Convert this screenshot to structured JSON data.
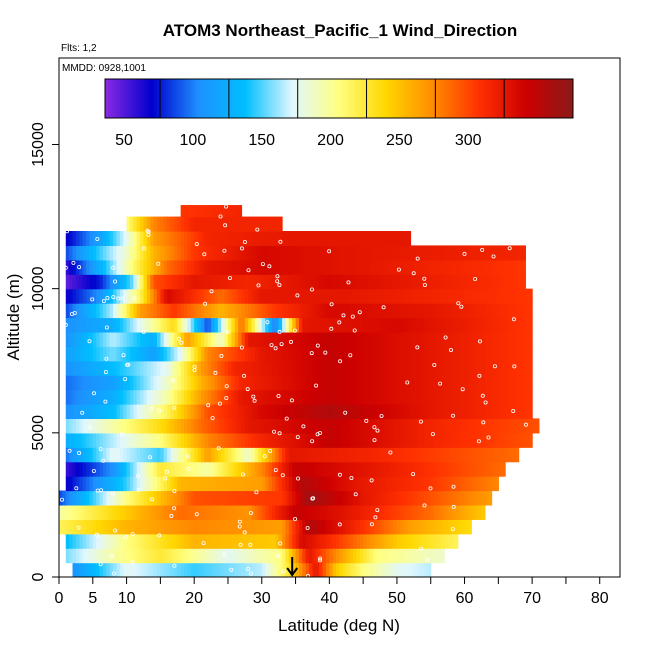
{
  "chart_data": {
    "type": "heatmap",
    "title": "ATOM3 Northeast_Pacific_1 Wind_Direction",
    "flights_label": "Flts: 1,2",
    "dates_label": "MMDD: 0928,1001",
    "xlabel": "Latitude (deg N)",
    "ylabel": "Altitude (m)",
    "xlim": [
      0,
      83
    ],
    "ylim": [
      0,
      18000
    ],
    "x_ticks": [
      0,
      5,
      10,
      20,
      30,
      40,
      50,
      60,
      70,
      80
    ],
    "y_ticks": [
      0,
      5000,
      10000,
      15000
    ],
    "colorbar": {
      "range": [
        10,
        350
      ],
      "ticks": [
        50,
        100,
        150,
        200,
        250,
        300
      ],
      "colors": [
        "#8a2be2",
        "#0000cd",
        "#1e90ff",
        "#00bfff",
        "#e0f7ff",
        "#ffff80",
        "#ffd700",
        "#ff8c00",
        "#ff3000",
        "#cc0000",
        "#8b1a1a"
      ]
    },
    "marker": {
      "x": 34.5,
      "label": "arrow"
    },
    "rows": [
      {
        "alt": [
          0,
          500
        ],
        "lat": [
          2,
          55
        ],
        "stops": [
          [
            2,
            80
          ],
          [
            10,
            150
          ],
          [
            20,
            120
          ],
          [
            30,
            140
          ],
          [
            34,
            200
          ],
          [
            38,
            300
          ],
          [
            41,
            220
          ],
          [
            45,
            180
          ],
          [
            50,
            150
          ],
          [
            55,
            140
          ]
        ]
      },
      {
        "alt": [
          500,
          1000
        ],
        "lat": [
          1,
          57
        ],
        "stops": [
          [
            1,
            130
          ],
          [
            8,
            170
          ],
          [
            15,
            200
          ],
          [
            25,
            150
          ],
          [
            33,
            180
          ],
          [
            37,
            300
          ],
          [
            40,
            260
          ],
          [
            47,
            180
          ],
          [
            57,
            160
          ]
        ]
      },
      {
        "alt": [
          1000,
          1500
        ],
        "lat": [
          1,
          59
        ],
        "stops": [
          [
            1,
            110
          ],
          [
            10,
            180
          ],
          [
            20,
            230
          ],
          [
            32,
            220
          ],
          [
            36,
            310
          ],
          [
            41,
            280
          ],
          [
            50,
            220
          ],
          [
            59,
            190
          ]
        ]
      },
      {
        "alt": [
          1500,
          2000
        ],
        "lat": [
          0,
          61
        ],
        "stops": [
          [
            0,
            190
          ],
          [
            10,
            230
          ],
          [
            20,
            250
          ],
          [
            33,
            240
          ],
          [
            37,
            330
          ],
          [
            42,
            300
          ],
          [
            52,
            240
          ],
          [
            61,
            210
          ]
        ]
      },
      {
        "alt": [
          2000,
          2500
        ],
        "lat": [
          0,
          63
        ],
        "stops": [
          [
            0,
            170
          ],
          [
            8,
            210
          ],
          [
            18,
            260
          ],
          [
            28,
            245
          ],
          [
            35,
            320
          ],
          [
            43,
            300
          ],
          [
            55,
            260
          ],
          [
            63,
            220
          ]
        ]
      },
      {
        "alt": [
          2500,
          3000
        ],
        "lat": [
          0,
          64
        ],
        "stops": [
          [
            0,
            60
          ],
          [
            10,
            180
          ],
          [
            20,
            270
          ],
          [
            33,
            280
          ],
          [
            37,
            340
          ],
          [
            45,
            300
          ],
          [
            55,
            270
          ],
          [
            64,
            240
          ]
        ]
      },
      {
        "alt": [
          3000,
          3500
        ],
        "lat": [
          1,
          65
        ],
        "stops": [
          [
            1,
            40
          ],
          [
            10,
            120
          ],
          [
            18,
            230
          ],
          [
            30,
            240
          ],
          [
            36,
            330
          ],
          [
            44,
            300
          ],
          [
            55,
            280
          ],
          [
            65,
            250
          ]
        ]
      },
      {
        "alt": [
          3500,
          4000
        ],
        "lat": [
          1,
          66
        ],
        "stops": [
          [
            1,
            30
          ],
          [
            8,
            80
          ],
          [
            15,
            200
          ],
          [
            22,
            170
          ],
          [
            30,
            250
          ],
          [
            35,
            320
          ],
          [
            46,
            300
          ],
          [
            66,
            260
          ]
        ]
      },
      {
        "alt": [
          4000,
          4500
        ],
        "lat": [
          1,
          68
        ],
        "stops": [
          [
            1,
            70
          ],
          [
            8,
            150
          ],
          [
            15,
            120
          ],
          [
            22,
            240
          ],
          [
            28,
            160
          ],
          [
            34,
            300
          ],
          [
            46,
            290
          ],
          [
            68,
            260
          ]
        ]
      },
      {
        "alt": [
          4500,
          5000
        ],
        "lat": [
          1,
          70
        ],
        "stops": [
          [
            1,
            100
          ],
          [
            8,
            140
          ],
          [
            15,
            180
          ],
          [
            22,
            250
          ],
          [
            30,
            290
          ],
          [
            40,
            320
          ],
          [
            55,
            290
          ],
          [
            70,
            270
          ]
        ]
      },
      {
        "alt": [
          5000,
          5500
        ],
        "lat": [
          1,
          71
        ],
        "stops": [
          [
            1,
            130
          ],
          [
            8,
            170
          ],
          [
            15,
            210
          ],
          [
            21,
            260
          ],
          [
            28,
            300
          ],
          [
            40,
            320
          ],
          [
            55,
            290
          ],
          [
            71,
            270
          ]
        ]
      },
      {
        "alt": [
          5500,
          6000
        ],
        "lat": [
          1,
          70
        ],
        "stops": [
          [
            1,
            80
          ],
          [
            8,
            110
          ],
          [
            16,
            190
          ],
          [
            22,
            270
          ],
          [
            30,
            310
          ],
          [
            40,
            330
          ],
          [
            55,
            300
          ],
          [
            70,
            280
          ]
        ]
      },
      {
        "alt": [
          6000,
          6500
        ],
        "lat": [
          1,
          70
        ],
        "stops": [
          [
            1,
            70
          ],
          [
            8,
            100
          ],
          [
            16,
            170
          ],
          [
            21,
            240
          ],
          [
            27,
            300
          ],
          [
            40,
            320
          ],
          [
            55,
            300
          ],
          [
            70,
            280
          ]
        ]
      },
      {
        "alt": [
          6500,
          7000
        ],
        "lat": [
          1,
          70
        ],
        "stops": [
          [
            1,
            70
          ],
          [
            8,
            90
          ],
          [
            16,
            160
          ],
          [
            21,
            230
          ],
          [
            27,
            290
          ],
          [
            40,
            320
          ],
          [
            55,
            300
          ],
          [
            70,
            280
          ]
        ]
      },
      {
        "alt": [
          7000,
          7500
        ],
        "lat": [
          1,
          70
        ],
        "stops": [
          [
            1,
            80
          ],
          [
            8,
            110
          ],
          [
            16,
            150
          ],
          [
            21,
            240
          ],
          [
            26,
            290
          ],
          [
            40,
            320
          ],
          [
            55,
            300
          ],
          [
            70,
            280
          ]
        ]
      },
      {
        "alt": [
          7500,
          8000
        ],
        "lat": [
          1,
          70
        ],
        "stops": [
          [
            1,
            90
          ],
          [
            8,
            130
          ],
          [
            14,
            90
          ],
          [
            18,
            150
          ],
          [
            22,
            250
          ],
          [
            30,
            300
          ],
          [
            40,
            320
          ],
          [
            70,
            280
          ]
        ]
      },
      {
        "alt": [
          8000,
          8500
        ],
        "lat": [
          1,
          70
        ],
        "stops": [
          [
            1,
            80
          ],
          [
            8,
            140
          ],
          [
            14,
            100
          ],
          [
            19,
            240
          ],
          [
            24,
            160
          ],
          [
            28,
            300
          ],
          [
            40,
            320
          ],
          [
            70,
            280
          ]
        ]
      },
      {
        "alt": [
          8500,
          9000
        ],
        "lat": [
          1,
          70
        ],
        "stops": [
          [
            1,
            80
          ],
          [
            8,
            100
          ],
          [
            12,
            150
          ],
          [
            17,
            210
          ],
          [
            22,
            60
          ],
          [
            27,
            260
          ],
          [
            32,
            70
          ],
          [
            36,
            300
          ],
          [
            50,
            310
          ],
          [
            70,
            280
          ]
        ]
      },
      {
        "alt": [
          9000,
          9500
        ],
        "lat": [
          1,
          70
        ],
        "stops": [
          [
            1,
            60
          ],
          [
            8,
            140
          ],
          [
            12,
            240
          ],
          [
            17,
            280
          ],
          [
            24,
            230
          ],
          [
            32,
            280
          ],
          [
            40,
            310
          ],
          [
            55,
            300
          ],
          [
            70,
            280
          ]
        ]
      },
      {
        "alt": [
          9500,
          10000
        ],
        "lat": [
          1,
          70
        ],
        "stops": [
          [
            1,
            40
          ],
          [
            6,
            80
          ],
          [
            12,
            190
          ],
          [
            16,
            310
          ],
          [
            24,
            260
          ],
          [
            30,
            300
          ],
          [
            42,
            300
          ],
          [
            70,
            280
          ]
        ]
      },
      {
        "alt": [
          10000,
          10500
        ],
        "lat": [
          1,
          69
        ],
        "stops": [
          [
            1,
            20
          ],
          [
            6,
            50
          ],
          [
            11,
            130
          ],
          [
            14,
            270
          ],
          [
            20,
            300
          ],
          [
            28,
            290
          ],
          [
            40,
            310
          ],
          [
            69,
            280
          ]
        ]
      },
      {
        "alt": [
          10500,
          11000
        ],
        "lat": [
          1,
          69
        ],
        "stops": [
          [
            1,
            30
          ],
          [
            6,
            100
          ],
          [
            12,
            200
          ],
          [
            16,
            260
          ],
          [
            22,
            300
          ],
          [
            30,
            310
          ],
          [
            45,
            300
          ],
          [
            69,
            280
          ]
        ]
      },
      {
        "alt": [
          11000,
          11500
        ],
        "lat": [
          1,
          69
        ],
        "stops": [
          [
            1,
            60
          ],
          [
            6,
            120
          ],
          [
            10,
            160
          ],
          [
            14,
            230
          ],
          [
            20,
            280
          ],
          [
            30,
            310
          ],
          [
            45,
            300
          ],
          [
            69,
            290
          ]
        ]
      },
      {
        "alt": [
          11500,
          12000
        ],
        "lat": [
          1,
          52
        ],
        "stops": [
          [
            1,
            40
          ],
          [
            6,
            90
          ],
          [
            10,
            150
          ],
          [
            14,
            240
          ],
          [
            22,
            290
          ],
          [
            35,
            300
          ],
          [
            52,
            300
          ]
        ]
      },
      {
        "alt": [
          12000,
          12500
        ],
        "lat": [
          10,
          33
        ],
        "stops": [
          [
            10,
            180
          ],
          [
            14,
            250
          ],
          [
            20,
            290
          ],
          [
            33,
            290
          ]
        ]
      },
      {
        "alt": [
          12500,
          12900
        ],
        "lat": [
          18,
          27
        ],
        "stops": [
          [
            18,
            280
          ],
          [
            27,
            290
          ]
        ]
      }
    ]
  }
}
